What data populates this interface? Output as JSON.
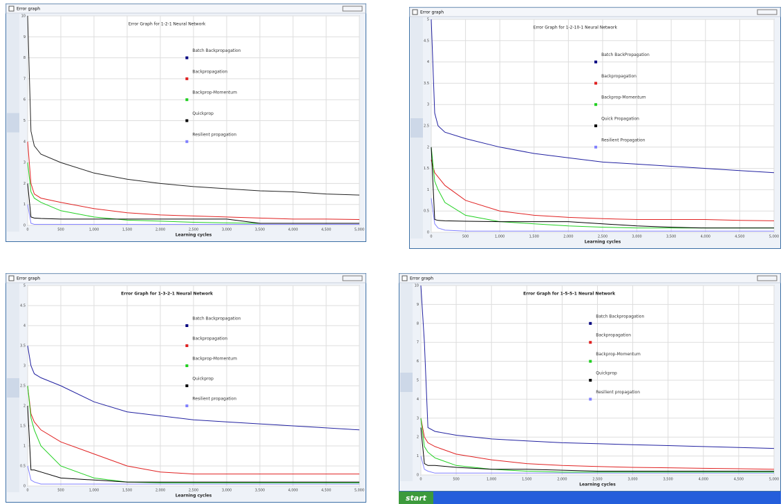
{
  "taskbar": {
    "start": "start"
  },
  "chart_data": [
    {
      "type": "line",
      "window_title": "Error graph",
      "title": "Error Graph for 1-2-1 Neural Network",
      "xlabel": "Learning cycles",
      "x": [
        0,
        50,
        100,
        200,
        500,
        1000,
        1500,
        2000,
        2500,
        3000,
        3500,
        4000,
        4500,
        5000
      ],
      "xlim": [
        0,
        5000
      ],
      "xticks": [
        0,
        500,
        {
          "value": 1000,
          "label": "1,000"
        },
        {
          "value": 1500,
          "label": "1,500"
        },
        {
          "value": 2000,
          "label": "2,000"
        },
        {
          "value": 2500,
          "label": "2,500"
        },
        {
          "value": 3000,
          "label": "3,000"
        },
        {
          "value": 3500,
          "label": "3,500"
        },
        {
          "value": 4000,
          "label": "4,000"
        },
        {
          "value": 4500,
          "label": "4,500"
        },
        {
          "value": 5000,
          "label": "5,000"
        }
      ],
      "ylim": [
        0,
        10
      ],
      "yticks": [
        0,
        1,
        2,
        3,
        4,
        5,
        6,
        7,
        8,
        9,
        10
      ],
      "grid": true,
      "series": [
        {
          "name": "Batch Backpropagation",
          "color": "#000080",
          "line_color": "#222222",
          "values": [
            10,
            4.5,
            3.8,
            3.4,
            3.0,
            2.5,
            2.2,
            2.0,
            1.85,
            1.75,
            1.65,
            1.6,
            1.5,
            1.45
          ]
        },
        {
          "name": "Backpropagation",
          "color": "#e02020",
          "values": [
            4,
            2,
            1.5,
            1.3,
            1.1,
            0.8,
            0.6,
            0.5,
            0.45,
            0.4,
            0.35,
            0.3,
            0.3,
            0.28
          ]
        },
        {
          "name": "Backprop-Momentum",
          "color": "#20d020",
          "values": [
            3,
            1.6,
            1.3,
            1.1,
            0.7,
            0.4,
            0.25,
            0.2,
            0.15,
            0.12,
            0.1,
            0.1,
            0.1,
            0.1
          ]
        },
        {
          "name": "Quickprop",
          "color": "#000000",
          "values": [
            2,
            0.4,
            0.35,
            0.33,
            0.3,
            0.3,
            0.3,
            0.3,
            0.3,
            0.3,
            0.1,
            0.1,
            0.1,
            0.1
          ]
        },
        {
          "name": "Resilient propagation",
          "color": "#8080ff",
          "values": [
            1,
            0.1,
            0.05,
            0.05,
            0.05,
            0.05,
            0.05,
            0.05,
            0.05,
            0.05,
            0.05,
            0.05,
            0.05,
            0.05
          ]
        }
      ]
    },
    {
      "type": "line",
      "window_title": "Error graph",
      "title": "Error Graph for 1-2-10-1 Neural Network",
      "xlabel": "Learning cycles",
      "x": [
        0,
        50,
        100,
        200,
        500,
        1000,
        1500,
        2000,
        2500,
        3000,
        3500,
        4000,
        4500,
        5000
      ],
      "xlim": [
        0,
        5000
      ],
      "xticks": [
        0,
        500,
        {
          "value": 1000,
          "label": "1,000"
        },
        {
          "value": 1500,
          "label": "1,500"
        },
        {
          "value": 2000,
          "label": "2,000"
        },
        {
          "value": 2500,
          "label": "2,500"
        },
        {
          "value": 3000,
          "label": "3,000"
        },
        {
          "value": 3500,
          "label": "3,500"
        },
        {
          "value": 4000,
          "label": "4,000"
        },
        {
          "value": 4500,
          "label": "4,500"
        },
        {
          "value": 5000,
          "label": "5,000"
        }
      ],
      "ylim": [
        0,
        5
      ],
      "yticks": [
        0,
        0.5,
        1,
        1.5,
        2,
        2.5,
        3,
        3.5,
        4,
        4.5,
        5
      ],
      "grid": true,
      "series": [
        {
          "name": "Batch BackPropagation",
          "color": "#000080",
          "line_color": "#2020a0",
          "values": [
            5,
            2.8,
            2.5,
            2.35,
            2.2,
            2.0,
            1.85,
            1.75,
            1.65,
            1.6,
            1.55,
            1.5,
            1.45,
            1.4
          ]
        },
        {
          "name": "Backpropagation",
          "color": "#e02020",
          "values": [
            1.7,
            1.4,
            1.3,
            1.1,
            0.75,
            0.5,
            0.4,
            0.35,
            0.32,
            0.3,
            0.3,
            0.3,
            0.28,
            0.27
          ]
        },
        {
          "name": "Backprop-Momentum",
          "color": "#20d020",
          "values": [
            2,
            1.2,
            1,
            0.7,
            0.4,
            0.25,
            0.2,
            0.15,
            0.12,
            0.1,
            0.1,
            0.1,
            0.1,
            0.1
          ]
        },
        {
          "name": "Quick Propagation",
          "color": "#000000",
          "values": [
            2,
            0.3,
            0.28,
            0.27,
            0.26,
            0.25,
            0.25,
            0.25,
            0.2,
            0.15,
            0.12,
            0.1,
            0.1,
            0.1
          ]
        },
        {
          "name": "Resilient Propagation",
          "color": "#8080ff",
          "values": [
            0.8,
            0.2,
            0.1,
            0.05,
            0.03,
            0.03,
            0.03,
            0.03,
            0.03,
            0.03,
            0.03,
            0.03,
            0.03,
            0.03
          ]
        }
      ]
    },
    {
      "type": "line",
      "window_title": "Error graph",
      "title": "Error Graph for 1-3-2-1 Neural Network",
      "xlabel": "Learning cycles",
      "x": [
        0,
        50,
        100,
        200,
        500,
        1000,
        1500,
        2000,
        2500,
        3000,
        3500,
        4000,
        4500,
        5000
      ],
      "xlim": [
        0,
        5000
      ],
      "xticks": [
        0,
        500,
        {
          "value": 1000,
          "label": "1,000"
        },
        {
          "value": 1500,
          "label": "1,500"
        },
        {
          "value": 2000,
          "label": "2,000"
        },
        {
          "value": 2500,
          "label": "2,500"
        },
        {
          "value": 3000,
          "label": "3,000"
        },
        {
          "value": 3500,
          "label": "3,500"
        },
        {
          "value": 4000,
          "label": "4,000"
        },
        {
          "value": 4500,
          "label": "4,500"
        },
        {
          "value": 5000,
          "label": "5,000"
        }
      ],
      "ylim": [
        0,
        5
      ],
      "yticks": [
        0,
        0.5,
        1,
        1.5,
        2,
        2.5,
        3,
        3.5,
        4,
        4.5,
        5
      ],
      "grid": true,
      "series": [
        {
          "name": "Batch Backpropagation",
          "color": "#000080",
          "line_color": "#2020a0",
          "values": [
            3.5,
            3,
            2.8,
            2.7,
            2.5,
            2.1,
            1.85,
            1.75,
            1.65,
            1.6,
            1.55,
            1.5,
            1.45,
            1.4
          ]
        },
        {
          "name": "Backpropagation",
          "color": "#e02020",
          "values": [
            2.5,
            1.8,
            1.6,
            1.4,
            1.1,
            0.8,
            0.5,
            0.35,
            0.3,
            0.3,
            0.3,
            0.3,
            0.3,
            0.3
          ]
        },
        {
          "name": "Backprop-Momentum",
          "color": "#20d020",
          "values": [
            2.5,
            1.7,
            1.4,
            1,
            0.5,
            0.2,
            0.1,
            0.08,
            0.08,
            0.08,
            0.08,
            0.08,
            0.08,
            0.08
          ]
        },
        {
          "name": "Quickprop",
          "color": "#000000",
          "values": [
            2,
            0.4,
            0.4,
            0.35,
            0.2,
            0.15,
            0.1,
            0.1,
            0.1,
            0.1,
            0.1,
            0.1,
            0.1,
            0.1
          ]
        },
        {
          "name": "Resilient propagation",
          "color": "#8080ff",
          "values": [
            0.5,
            0.15,
            0.1,
            0.05,
            0.05,
            0.05,
            0.05,
            0.05,
            0.05,
            0.05,
            0.05,
            0.05,
            0.05,
            0.05
          ]
        }
      ]
    },
    {
      "type": "line",
      "window_title": "Error graph",
      "title": "Error Graph for 1-5-5-1 Neural Network",
      "xlabel": "Learning cycles",
      "x": [
        0,
        50,
        100,
        200,
        500,
        1000,
        1500,
        2000,
        2500,
        3000,
        3500,
        4000,
        4500,
        5000
      ],
      "xlim": [
        0,
        5000
      ],
      "xticks": [
        0,
        500,
        {
          "value": 1000,
          "label": "1,000"
        },
        {
          "value": 1500,
          "label": "1,500"
        },
        {
          "value": 2000,
          "label": "2,000"
        },
        {
          "value": 2500,
          "label": "2,500"
        },
        {
          "value": 3000,
          "label": "3,000"
        },
        {
          "value": 3500,
          "label": "3,500"
        },
        {
          "value": 4000,
          "label": "4,000"
        },
        {
          "value": 4500,
          "label": "4,500"
        },
        {
          "value": 5000,
          "label": "5,000"
        }
      ],
      "ylim": [
        0,
        10
      ],
      "yticks": [
        0,
        1,
        2,
        3,
        4,
        5,
        6,
        7,
        8,
        9,
        10
      ],
      "grid": true,
      "series": [
        {
          "name": "Batch Backpropagation",
          "color": "#000080",
          "line_color": "#2020a0",
          "values": [
            10,
            7,
            2.5,
            2.3,
            2.1,
            1.9,
            1.8,
            1.7,
            1.65,
            1.6,
            1.55,
            1.5,
            1.45,
            1.4
          ]
        },
        {
          "name": "Backpropagation",
          "color": "#e02020",
          "values": [
            3,
            2,
            1.7,
            1.5,
            1.1,
            0.8,
            0.6,
            0.5,
            0.45,
            0.4,
            0.38,
            0.35,
            0.33,
            0.3
          ]
        },
        {
          "name": "Backprop-Momentum",
          "color": "#20d020",
          "values": [
            3,
            1.5,
            1.2,
            0.9,
            0.5,
            0.3,
            0.2,
            0.15,
            0.15,
            0.15,
            0.15,
            0.15,
            0.15,
            0.15
          ]
        },
        {
          "name": "Quickprop",
          "color": "#000000",
          "values": [
            2.5,
            0.6,
            0.5,
            0.5,
            0.4,
            0.3,
            0.3,
            0.25,
            0.2,
            0.2,
            0.2,
            0.2,
            0.2,
            0.2
          ]
        },
        {
          "name": "Resilient propagation",
          "color": "#8080ff",
          "values": [
            1,
            0.3,
            0.2,
            0.1,
            0.1,
            0.1,
            0.1,
            0.1,
            0.1,
            0.1,
            0.1,
            0.1,
            0.1,
            0.1
          ]
        }
      ]
    }
  ]
}
